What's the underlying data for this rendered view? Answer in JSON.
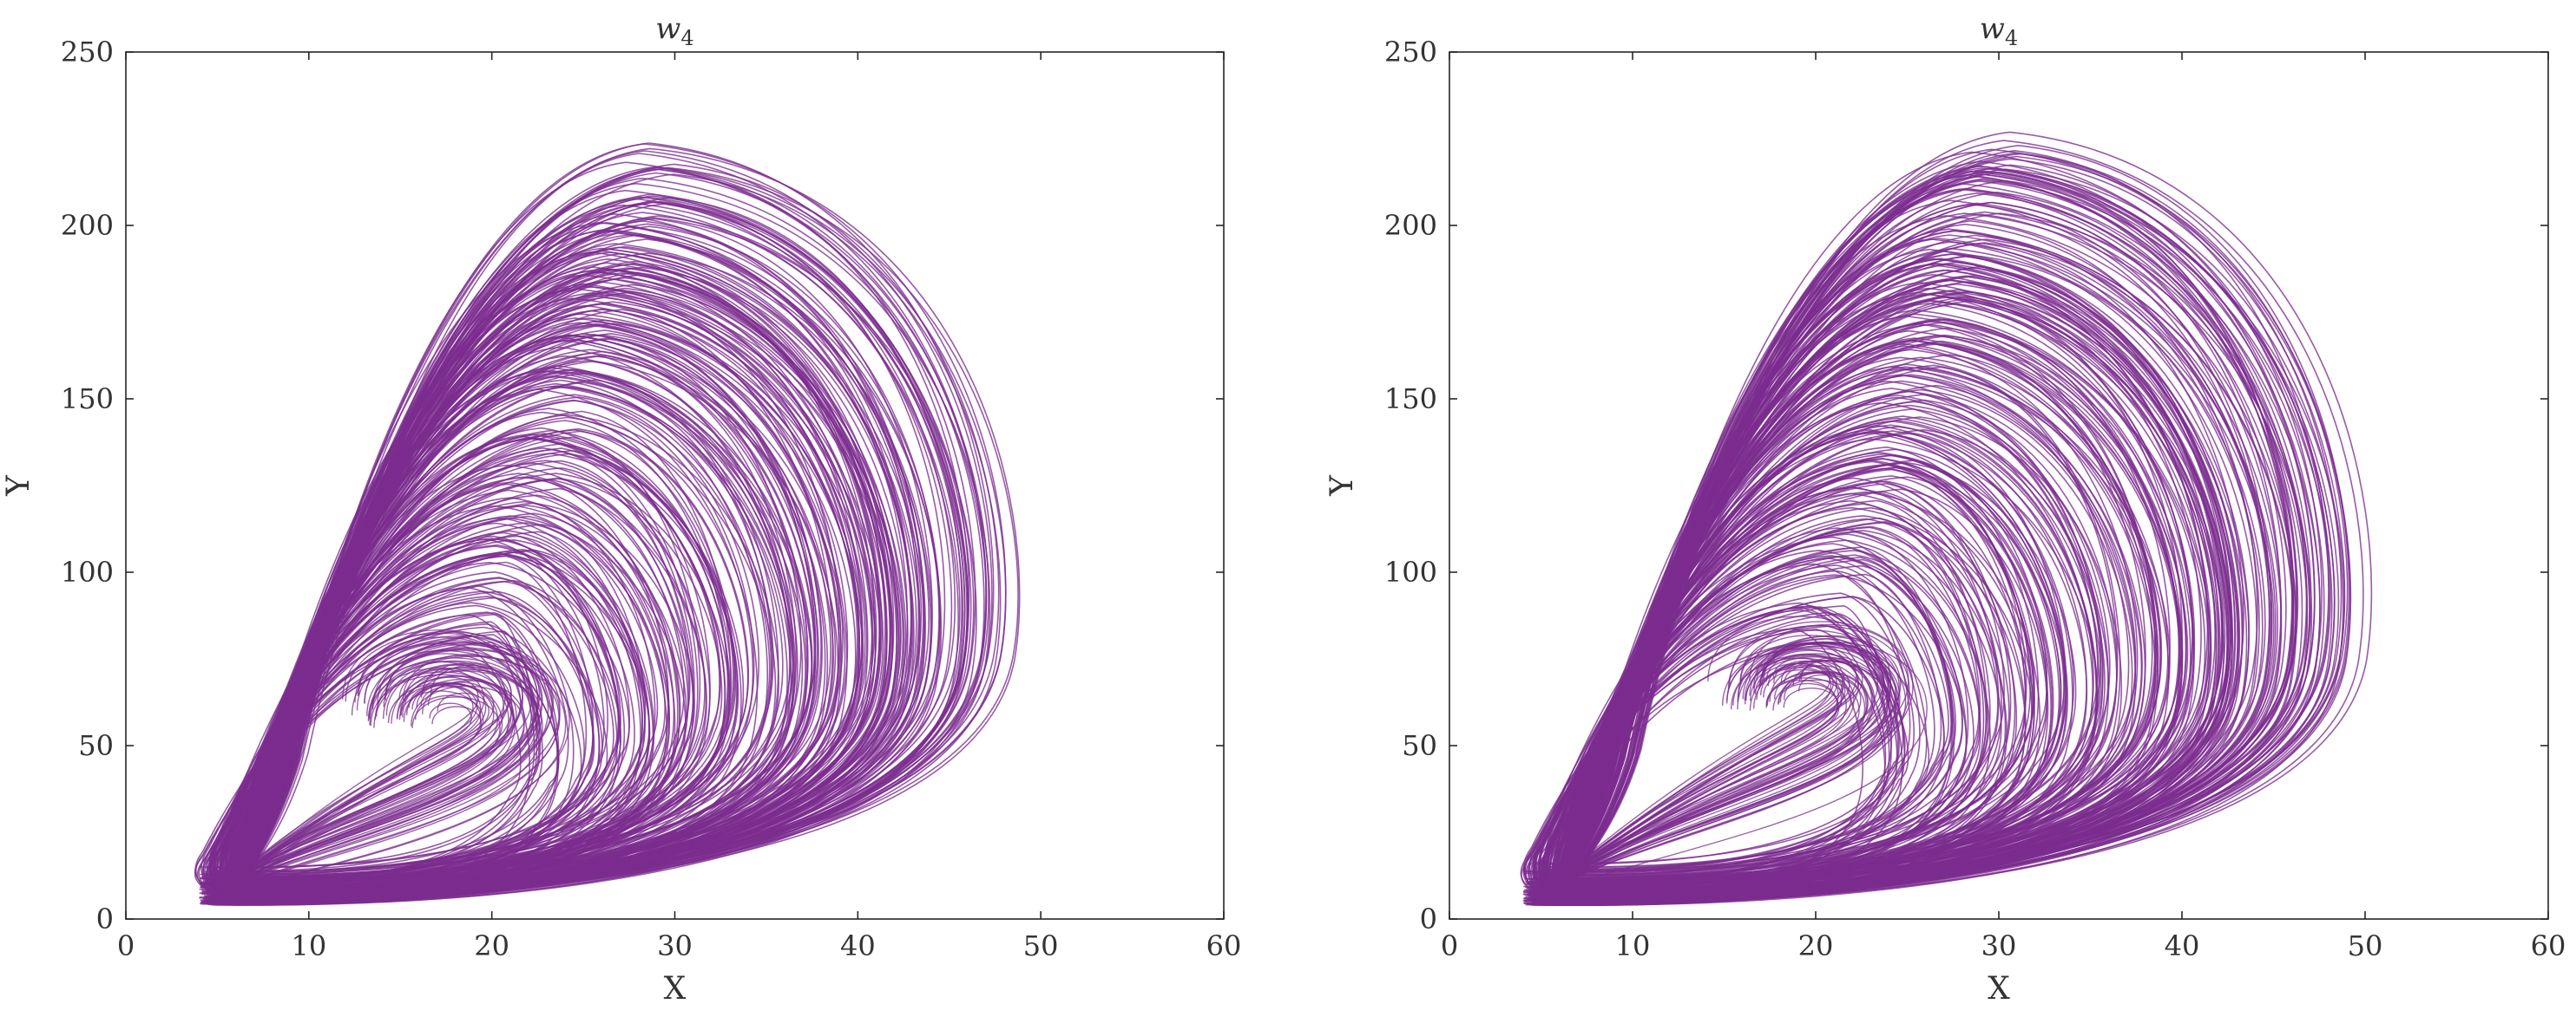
{
  "chart_data": [
    {
      "type": "line",
      "title": "w",
      "title_subscript": "4",
      "xlabel": "X",
      "ylabel": "Y",
      "xlim": [
        0,
        60
      ],
      "ylim": [
        0,
        250
      ],
      "xticks": [
        "0",
        "10",
        "20",
        "30",
        "40",
        "50",
        "60"
      ],
      "yticks": [
        "0",
        "50",
        "100",
        "150",
        "200",
        "250"
      ],
      "grid": false,
      "color": "#7B2D8E",
      "attractor": {
        "x_min": 4,
        "x_max": 48,
        "y_min": 4,
        "y_max": 222,
        "peak_x": 29,
        "peak_y": 222,
        "inner_focus_x": 19,
        "inner_focus_y": 70,
        "bright_region_x": 18,
        "bright_region_y": 60
      }
    },
    {
      "type": "line",
      "title": "w",
      "title_subscript": "4",
      "xlabel": "X",
      "ylabel": "Y",
      "xlim": [
        0,
        60
      ],
      "ylim": [
        0,
        250
      ],
      "xticks": [
        "0",
        "10",
        "20",
        "30",
        "40",
        "50",
        "60"
      ],
      "yticks": [
        "0",
        "50",
        "100",
        "150",
        "200",
        "250"
      ],
      "grid": false,
      "color": "#7B2D8E",
      "attractor": {
        "x_min": 4,
        "x_max": 49,
        "y_min": 4,
        "y_max": 224,
        "peak_x": 30,
        "peak_y": 224,
        "inner_focus_x": 20,
        "inner_focus_y": 70,
        "bright_region_x": 20,
        "bright_region_y": 65
      }
    }
  ]
}
